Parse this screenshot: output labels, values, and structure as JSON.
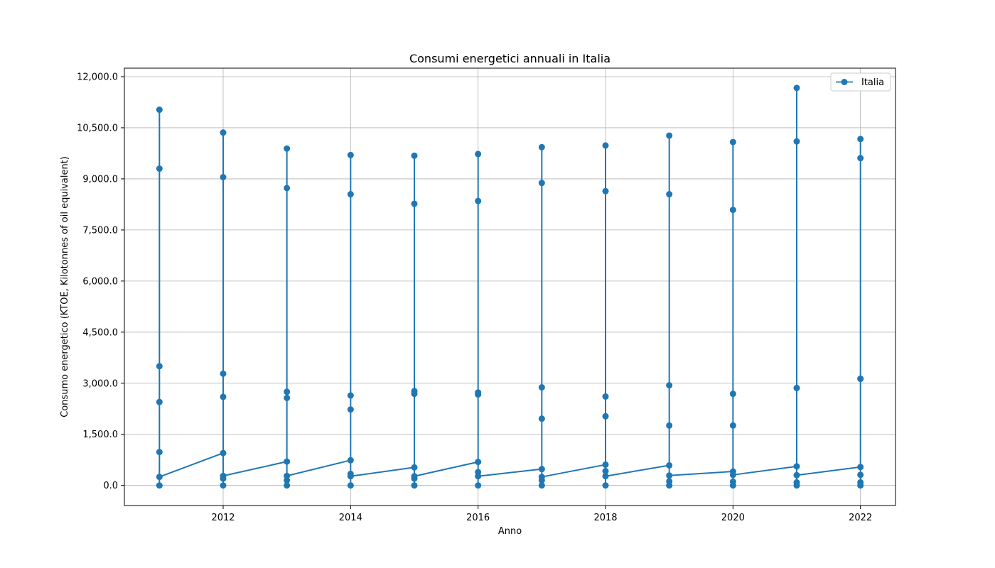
{
  "chart_data": {
    "type": "line",
    "title": "Consumi energetici annuali in Italia",
    "xlabel": "Anno",
    "ylabel": "Consumo energetico (KTOE, Kilotonnes of oil equivalent)",
    "xlim": [
      2010.45,
      2022.55
    ],
    "ylim": [
      -590,
      12250
    ],
    "x_ticks": [
      2012,
      2014,
      2016,
      2018,
      2020,
      2022
    ],
    "x_tick_labels": [
      "2012",
      "2014",
      "2016",
      "2018",
      "2020",
      "2022"
    ],
    "y_ticks": [
      0,
      1500,
      3000,
      4500,
      6000,
      7500,
      9000,
      10500,
      12000
    ],
    "y_tick_labels": [
      "0.0",
      "1,500.0",
      "3,000.0",
      "4,500.0",
      "6,000.0",
      "7,500.0",
      "9,000.0",
      "10,500.0",
      "12,000.0"
    ],
    "grid": true,
    "legend_position": "top-right",
    "series": [
      {
        "name": "Italia",
        "color": "#1f77b4",
        "marker": "circle",
        "points": [
          [
            2011,
            0
          ],
          [
            2011,
            2450
          ],
          [
            2011,
            3500
          ],
          [
            2011,
            9300
          ],
          [
            2011,
            11030
          ],
          [
            2011,
            980
          ],
          [
            2011,
            250
          ],
          [
            2012,
            950
          ],
          [
            2012,
            0
          ],
          [
            2012,
            200
          ],
          [
            2012,
            2600
          ],
          [
            2012,
            3280
          ],
          [
            2012,
            9050
          ],
          [
            2012,
            10360
          ],
          [
            2012,
            280
          ],
          [
            2013,
            700
          ],
          [
            2013,
            0
          ],
          [
            2013,
            150
          ],
          [
            2013,
            2570
          ],
          [
            2013,
            2750
          ],
          [
            2013,
            8730
          ],
          [
            2013,
            9890
          ],
          [
            2013,
            280
          ],
          [
            2014,
            740
          ],
          [
            2014,
            0
          ],
          [
            2014,
            340
          ],
          [
            2014,
            2230
          ],
          [
            2014,
            2640
          ],
          [
            2014,
            8550
          ],
          [
            2014,
            9700
          ],
          [
            2014,
            270
          ],
          [
            2015,
            530
          ],
          [
            2015,
            0
          ],
          [
            2015,
            200
          ],
          [
            2015,
            2690
          ],
          [
            2015,
            2770
          ],
          [
            2015,
            8270
          ],
          [
            2015,
            9680
          ],
          [
            2015,
            270
          ],
          [
            2016,
            690
          ],
          [
            2016,
            0
          ],
          [
            2016,
            390
          ],
          [
            2016,
            2670
          ],
          [
            2016,
            2730
          ],
          [
            2016,
            8350
          ],
          [
            2016,
            9730
          ],
          [
            2016,
            270
          ],
          [
            2017,
            480
          ],
          [
            2017,
            0
          ],
          [
            2017,
            150
          ],
          [
            2017,
            1960
          ],
          [
            2017,
            2880
          ],
          [
            2017,
            8880
          ],
          [
            2017,
            9930
          ],
          [
            2017,
            250
          ],
          [
            2018,
            610
          ],
          [
            2018,
            0
          ],
          [
            2018,
            420
          ],
          [
            2018,
            2030
          ],
          [
            2018,
            2610
          ],
          [
            2018,
            8640
          ],
          [
            2018,
            9980
          ],
          [
            2018,
            270
          ],
          [
            2019,
            590
          ],
          [
            2019,
            0
          ],
          [
            2019,
            120
          ],
          [
            2019,
            1760
          ],
          [
            2019,
            2940
          ],
          [
            2019,
            8550
          ],
          [
            2019,
            10270
          ],
          [
            2019,
            290
          ],
          [
            2020,
            410
          ],
          [
            2020,
            0
          ],
          [
            2020,
            110
          ],
          [
            2020,
            1760
          ],
          [
            2020,
            2690
          ],
          [
            2020,
            8090
          ],
          [
            2020,
            10080
          ],
          [
            2020,
            310
          ],
          [
            2021,
            560
          ],
          [
            2021,
            0
          ],
          [
            2021,
            90
          ],
          [
            2021,
            2860
          ],
          [
            2021,
            2860
          ],
          [
            2021,
            10100
          ],
          [
            2021,
            11670
          ],
          [
            2021,
            300
          ],
          [
            2022,
            540
          ],
          [
            2022,
            0
          ],
          [
            2022,
            90
          ],
          [
            2022,
            3130
          ],
          [
            2022,
            3130
          ],
          [
            2022,
            9610
          ],
          [
            2022,
            10170
          ],
          [
            2022,
            310
          ]
        ]
      }
    ]
  }
}
